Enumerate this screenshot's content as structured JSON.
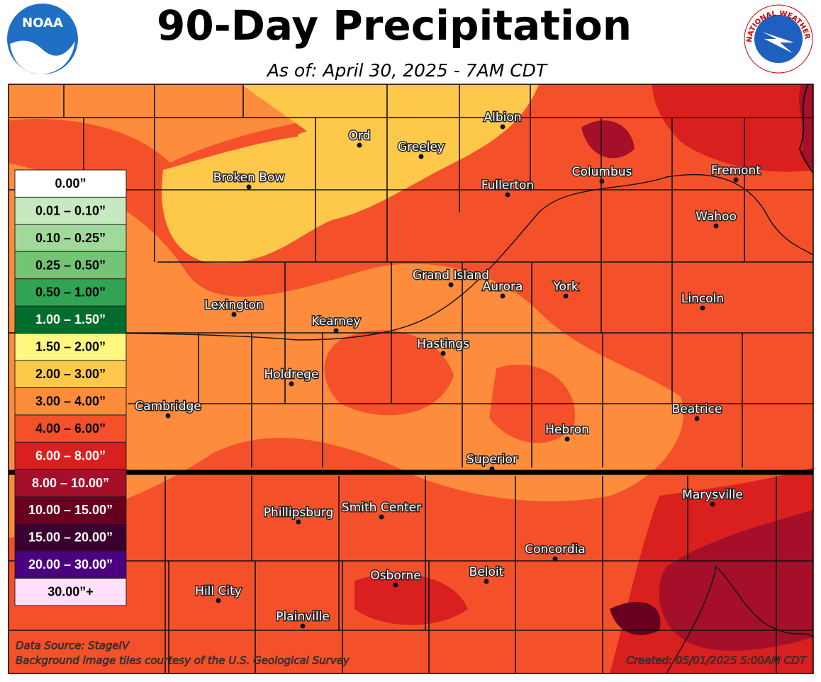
{
  "header": {
    "title": "90-Day Precipitation",
    "subtitle": "As of: April 30, 2025 - 7AM CDT",
    "left_logo": "NOAA",
    "right_logo": "NATIONAL WEATHER SERVICE"
  },
  "legend": [
    {
      "label": "0.00”",
      "color": "#ffffff"
    },
    {
      "label": "0.01 – 0.10”",
      "color": "#c7e9c0"
    },
    {
      "label": "0.10 – 0.25”",
      "color": "#a1d99b"
    },
    {
      "label": "0.25 – 0.50”",
      "color": "#74c476"
    },
    {
      "label": "0.50 – 1.00”",
      "color": "#31a354"
    },
    {
      "label": "1.00 – 1.50”",
      "color": "#006d2c"
    },
    {
      "label": "1.50 – 2.00”",
      "color": "#fff880"
    },
    {
      "label": "2.00 – 3.00”",
      "color": "#fec84b"
    },
    {
      "label": "3.00 – 4.00”",
      "color": "#fd8d3c"
    },
    {
      "label": "4.00 – 6.00”",
      "color": "#f4512b"
    },
    {
      "label": "6.00 – 8.00”",
      "color": "#d9201f"
    },
    {
      "label": "8.00 – 10.00”",
      "color": "#a50f2a"
    },
    {
      "label": "10.00 – 15.00”",
      "color": "#67001f"
    },
    {
      "label": "15.00 – 20.00”",
      "color": "#3a0030"
    },
    {
      "label": "20.00 – 30.00”",
      "color": "#4b0080"
    },
    {
      "label": "30.00”+",
      "color": "#ffe0ff"
    }
  ],
  "cities": [
    "Albion",
    "Ord",
    "Greeley",
    "Broken Bow",
    "Fullerton",
    "Columbus",
    "Fremont",
    "Wahoo",
    "Grand Island",
    "Aurora",
    "York",
    "Lincoln",
    "Lexington",
    "Kearney",
    "Hastings",
    "Holdrege",
    "Cambridge",
    "Beatrice",
    "Hebron",
    "Superior",
    "Marysville",
    "Phillipsburg",
    "Smith Center",
    "Concordia",
    "Beloit",
    "Osborne",
    "Hill City",
    "Plainville"
  ],
  "footer": {
    "source": "Data Source: StageIV",
    "credit": "Background image tiles courtesy of the U.S. Geological Survey",
    "created": "Created: 05/01/2025 5:00AM CDT"
  }
}
